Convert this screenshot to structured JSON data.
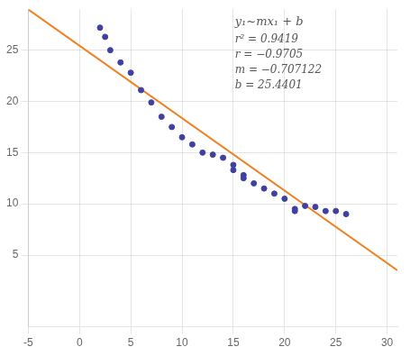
{
  "chart_data": {
    "type": "scatter",
    "series": [
      {
        "type": "scatter",
        "color": "#4040a0",
        "marker": "circle",
        "x": [
          2,
          2.5,
          3,
          4,
          5,
          6,
          7,
          8,
          9,
          10,
          11,
          12,
          13,
          14,
          15,
          15,
          16,
          16,
          17,
          18,
          19,
          20,
          21,
          21,
          22,
          23,
          24,
          25,
          26
        ],
        "values": [
          27.2,
          26.3,
          25.0,
          23.8,
          22.8,
          21.1,
          19.9,
          18.5,
          17.5,
          16.5,
          15.8,
          15.0,
          14.8,
          14.5,
          13.8,
          13.3,
          12.8,
          12.5,
          12.0,
          11.5,
          11.0,
          10.5,
          9.5,
          9.3,
          9.8,
          9.7,
          9.3,
          9.3,
          9.0
        ]
      },
      {
        "type": "line",
        "color": "#f08020",
        "line_style": "solid",
        "x": [
          -5,
          31
        ],
        "values": [
          28.97571,
          3.519318
        ]
      }
    ],
    "xlim": [
      -5,
      31
    ],
    "ylim": [
      -2,
      29
    ],
    "xticks": [
      -5,
      0,
      5,
      10,
      15,
      20,
      25,
      30
    ],
    "yticks": [
      5,
      10,
      15,
      20,
      25
    ],
    "grid": true,
    "annotations": [
      "y₁~mx₁ + b",
      "r² = 0.9419",
      "r = −0.9705",
      "m = −0.707122",
      "b = 25.4401"
    ]
  }
}
